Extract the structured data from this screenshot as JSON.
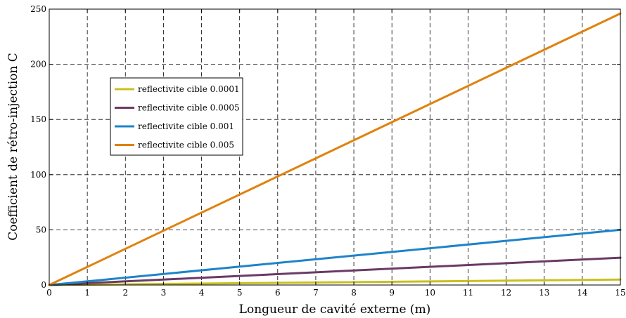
{
  "chart_data": {
    "type": "line",
    "title": "",
    "xlabel": "Longueur de cavité externe (m)",
    "ylabel": "Coefficient de rétro-injection C",
    "xlim": [
      0,
      15
    ],
    "ylim": [
      0,
      250
    ],
    "xticks": [
      0,
      1,
      2,
      3,
      4,
      5,
      6,
      7,
      8,
      9,
      10,
      11,
      12,
      13,
      14,
      15
    ],
    "yticks": [
      0,
      50,
      100,
      150,
      200,
      250
    ],
    "grid": true,
    "grid_style": "dashed",
    "legend_position": "upper-left",
    "series": [
      {
        "name": "reflectivite cible 0.0001",
        "color": "#c8c01e",
        "x": [
          0,
          15
        ],
        "y": [
          0,
          4.9
        ]
      },
      {
        "name": "reflectivite cible 0.0005",
        "color": "#6b3a66",
        "x": [
          0,
          15
        ],
        "y": [
          0,
          24.7
        ]
      },
      {
        "name": "reflectivite cible 0.001",
        "color": "#1f83c9",
        "x": [
          0,
          15
        ],
        "y": [
          0,
          50
        ]
      },
      {
        "name": "reflectivite cible 0.005",
        "color": "#e0820f",
        "x": [
          0,
          15
        ],
        "y": [
          0,
          246
        ]
      }
    ]
  }
}
